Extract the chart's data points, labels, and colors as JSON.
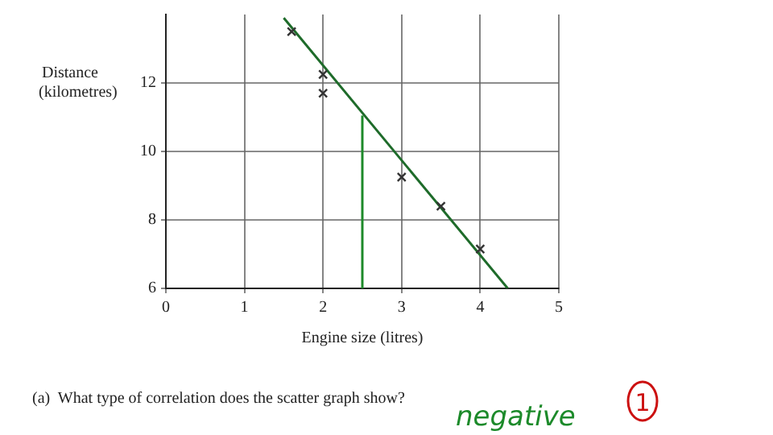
{
  "chart_data": {
    "type": "scatter",
    "xlabel": "Engine size (litres)",
    "ylabel": "Distance (kilometres)",
    "xlim": [
      0,
      5
    ],
    "xticks": [
      0,
      1,
      2,
      3,
      4,
      5
    ],
    "ylim": [
      6,
      14
    ],
    "yticks": [
      6,
      8,
      10,
      12
    ],
    "grid": true,
    "marker": "cross",
    "series": [
      {
        "type": "scatter",
        "color": "#333333",
        "x": [
          1.6,
          2.0,
          2.0,
          3.0,
          3.5,
          4.0
        ],
        "values": [
          13.5,
          12.25,
          11.7,
          9.25,
          8.4,
          7.15
        ]
      },
      {
        "type": "line",
        "color": "#1e6b2a",
        "marker": "none",
        "x": [
          1.5,
          4.35
        ],
        "values": [
          13.9,
          6.0
        ]
      },
      {
        "type": "line",
        "color": "#1e8a2a",
        "marker": "none",
        "x": [
          2.5,
          2.5
        ],
        "values": [
          6.0,
          11.05
        ]
      }
    ],
    "annotations": [
      "(a)  What type of correlation does the scatter graph show?",
      "negative",
      "1"
    ]
  }
}
